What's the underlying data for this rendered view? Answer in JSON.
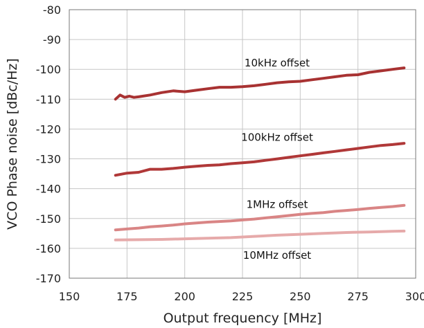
{
  "chart_data": {
    "type": "line",
    "title": "",
    "xlabel": "Output frequency [MHz]",
    "ylabel": "VCO Phase noise [dBc/Hz]",
    "xlim": [
      150,
      300
    ],
    "ylim": [
      -170,
      -80
    ],
    "x_ticks": [
      "150",
      "175",
      "200",
      "225",
      "250",
      "275",
      "300"
    ],
    "y_ticks": [
      "-80",
      "-90",
      "-100",
      "-110",
      "-120",
      "-130",
      "-140",
      "-150",
      "-160",
      "-170"
    ],
    "grid": true,
    "legend": "none",
    "series": [
      {
        "name": "10kHz offset",
        "color": "#a83232",
        "x": [
          170,
          172,
          174,
          176,
          178,
          180,
          185,
          190,
          195,
          200,
          205,
          210,
          215,
          220,
          225,
          230,
          235,
          240,
          245,
          250,
          255,
          260,
          265,
          270,
          275,
          280,
          285,
          290,
          295
        ],
        "y": [
          -110,
          -108.6,
          -109.4,
          -109,
          -109.4,
          -109.2,
          -108.6,
          -107.8,
          -107.2,
          -107.5,
          -107,
          -106.5,
          -106,
          -106,
          -105.8,
          -105.5,
          -105,
          -104.5,
          -104.2,
          -104,
          -103.5,
          -103,
          -102.5,
          -102,
          -101.8,
          -101,
          -100.5,
          -100,
          -99.5
        ]
      },
      {
        "name": "100kHz offset",
        "color": "#b03838",
        "x": [
          170,
          175,
          180,
          185,
          190,
          195,
          200,
          205,
          210,
          215,
          220,
          225,
          230,
          235,
          240,
          245,
          250,
          255,
          260,
          265,
          270,
          275,
          280,
          285,
          290,
          295
        ],
        "y": [
          -135.5,
          -134.8,
          -134.5,
          -133.5,
          -133.5,
          -133.2,
          -132.8,
          -132.5,
          -132.2,
          -132,
          -131.6,
          -131.3,
          -131,
          -130.5,
          -130,
          -129.5,
          -129,
          -128.5,
          -128,
          -127.5,
          -127,
          -126.5,
          -126,
          -125.5,
          -125.2,
          -124.8
        ]
      },
      {
        "name": "1MHz offset",
        "color": "#d98585",
        "x": [
          170,
          175,
          180,
          185,
          190,
          195,
          200,
          205,
          210,
          215,
          220,
          225,
          230,
          235,
          240,
          245,
          250,
          255,
          260,
          265,
          270,
          275,
          280,
          285,
          290,
          295
        ],
        "y": [
          -153.8,
          -153.5,
          -153.2,
          -152.8,
          -152.5,
          -152.2,
          -151.8,
          -151.5,
          -151.2,
          -151,
          -150.8,
          -150.5,
          -150.2,
          -149.8,
          -149.4,
          -149,
          -148.6,
          -148.3,
          -148,
          -147.6,
          -147.3,
          -147,
          -146.6,
          -146.3,
          -146,
          -145.6
        ]
      },
      {
        "name": "10MHz offset",
        "color": "#e6aaaa",
        "x": [
          170,
          180,
          190,
          200,
          210,
          220,
          230,
          240,
          250,
          260,
          270,
          280,
          290,
          295
        ],
        "y": [
          -157.2,
          -157.1,
          -157,
          -156.8,
          -156.6,
          -156.4,
          -156,
          -155.6,
          -155.3,
          -155,
          -154.7,
          -154.5,
          -154.3,
          -154.2
        ]
      }
    ],
    "annotations": [
      {
        "text": "10kHz offset",
        "x": 240,
        "y": -99
      },
      {
        "text": "100kHz offset",
        "x": 240,
        "y": -124
      },
      {
        "text": "1MHz offset",
        "x": 240,
        "y": -146.5
      },
      {
        "text": "10MHz offset",
        "x": 240,
        "y": -163.5
      }
    ]
  }
}
